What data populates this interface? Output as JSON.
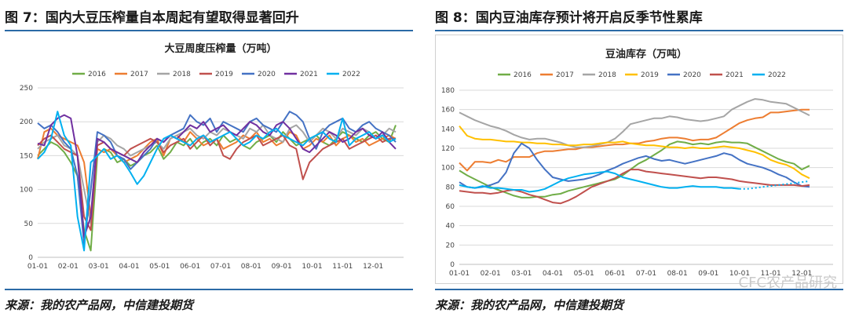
{
  "left": {
    "figure_title": "图 7：国内大豆压榨量自本周起有望取得显著回升",
    "source": "来源：我的农产品网，中信建投期货"
  },
  "right": {
    "figure_title": "图 8：国内豆油库存预计将开启反季节性累库",
    "source": "来源：我的农产品网，中信建投期货"
  },
  "watermark": "CFC农产品研究",
  "colors": {
    "rule": "#2b6aa6",
    "2016": "#70ad47",
    "2017": "#ed7d31",
    "2018": "#a5a5a5",
    "2019": "#ffc000",
    "2020": "#4472c4",
    "2021": "#c0504d",
    "2021_left": "#7030a0",
    "2022": "#00b0f0",
    "2019_left": "#c0504d"
  },
  "chart_data": [
    {
      "type": "line",
      "title": "大豆周度压榨量（万吨）",
      "x_ticks": [
        "01-01",
        "02-01",
        "03-01",
        "04-01",
        "05-01",
        "06-01",
        "07-01",
        "08-01",
        "09-01",
        "10-01",
        "11-01",
        "12-01"
      ],
      "ylim": [
        0,
        250
      ],
      "y_ticks": [
        0,
        50,
        100,
        150,
        200,
        250
      ],
      "legend": [
        "2016",
        "2017",
        "2018",
        "2019",
        "2020",
        "2021",
        "2022"
      ],
      "series": [
        {
          "name": "2016",
          "color": "#70ad47",
          "values": [
            150,
            160,
            170,
            165,
            155,
            140,
            120,
            40,
            10,
            150,
            160,
            155,
            140,
            145,
            135,
            140,
            150,
            155,
            165,
            145,
            155,
            170,
            165,
            175,
            160,
            170,
            175,
            165,
            180,
            170,
            175,
            165,
            160,
            170,
            175,
            180,
            170,
            185,
            175,
            165,
            170,
            175,
            180,
            170,
            165,
            175,
            185,
            180,
            175,
            170,
            180,
            185,
            175,
            170,
            195
          ]
        },
        {
          "name": "2017",
          "color": "#ed7d31",
          "values": [
            145,
            185,
            190,
            180,
            175,
            170,
            165,
            140,
            60,
            160,
            155,
            160,
            150,
            140,
            145,
            150,
            160,
            170,
            175,
            150,
            175,
            180,
            170,
            185,
            175,
            165,
            170,
            175,
            160,
            165,
            170,
            180,
            175,
            185,
            170,
            175,
            165,
            170,
            185,
            180,
            160,
            165,
            175,
            170,
            180,
            165,
            175,
            180,
            170,
            175,
            165,
            170,
            175,
            180,
            175
          ]
        },
        {
          "name": "2018",
          "color": "#a5a5a5",
          "values": [
            160,
            170,
            175,
            180,
            165,
            160,
            150,
            100,
            50,
            170,
            180,
            175,
            165,
            160,
            150,
            155,
            160,
            165,
            170,
            160,
            175,
            180,
            185,
            190,
            180,
            175,
            185,
            180,
            190,
            185,
            180,
            175,
            190,
            185,
            195,
            180,
            175,
            170,
            190,
            195,
            185,
            170,
            180,
            190,
            185,
            175,
            190,
            185,
            180,
            190,
            185,
            175,
            180,
            190,
            185
          ]
        },
        {
          "name": "2019",
          "color": "#c0504d",
          "values": [
            165,
            175,
            180,
            170,
            160,
            155,
            150,
            60,
            40,
            165,
            170,
            160,
            155,
            150,
            160,
            165,
            170,
            175,
            170,
            155,
            165,
            170,
            175,
            160,
            170,
            180,
            165,
            175,
            150,
            145,
            160,
            170,
            175,
            180,
            165,
            170,
            175,
            180,
            165,
            160,
            115,
            140,
            150,
            160,
            165,
            170,
            175,
            160,
            165,
            170,
            175,
            180,
            170,
            175,
            175
          ]
        },
        {
          "name": "2020",
          "color": "#4472c4",
          "values": [
            198,
            190,
            195,
            185,
            170,
            160,
            120,
            20,
            100,
            185,
            180,
            170,
            150,
            145,
            130,
            140,
            150,
            160,
            175,
            170,
            180,
            185,
            190,
            210,
            200,
            195,
            205,
            185,
            200,
            195,
            190,
            185,
            200,
            205,
            195,
            190,
            185,
            200,
            215,
            210,
            200,
            175,
            160,
            185,
            195,
            200,
            205,
            190,
            185,
            195,
            200,
            190,
            185,
            180,
            170
          ]
        },
        {
          "name": "2021",
          "color": "#7030a0",
          "values": [
            168,
            165,
            195,
            205,
            210,
            205,
            150,
            30,
            60,
            175,
            170,
            160,
            155,
            150,
            145,
            140,
            155,
            165,
            175,
            170,
            180,
            175,
            185,
            195,
            190,
            200,
            185,
            190,
            195,
            185,
            180,
            190,
            200,
            195,
            185,
            180,
            195,
            200,
            190,
            175,
            160,
            155,
            165,
            175,
            185,
            180,
            170,
            175,
            185,
            190,
            180,
            175,
            185,
            170,
            160
          ]
        },
        {
          "name": "2022",
          "color": "#00b0f0",
          "values": [
            145,
            155,
            175,
            215,
            180,
            165,
            60,
            10,
            140,
            150,
            160,
            145,
            150,
            140,
            125,
            108,
            120,
            140,
            160,
            175,
            180,
            175,
            170,
            165,
            175,
            180,
            170,
            175,
            180,
            185,
            175,
            165,
            170,
            180,
            175,
            185,
            190,
            180,
            175,
            170,
            165,
            175,
            180,
            185,
            175,
            170,
            205,
            165,
            175,
            180,
            185,
            175,
            180,
            170,
            175
          ]
        }
      ]
    },
    {
      "type": "line",
      "title": "豆油库存（万吨）",
      "x_ticks": [
        "01-01",
        "02-01",
        "03-01",
        "04-01",
        "05-01",
        "06-01",
        "07-01",
        "08-01",
        "09-01",
        "10-01",
        "11-01",
        "12-01"
      ],
      "ylim": [
        0,
        180
      ],
      "y_ticks": [
        0,
        20,
        40,
        60,
        80,
        100,
        120,
        140,
        160,
        180
      ],
      "legend": [
        "2016",
        "2017",
        "2018",
        "2019",
        "2020",
        "2021",
        "2022"
      ],
      "series": [
        {
          "name": "2016",
          "color": "#70ad47",
          "values": [
            97,
            92,
            88,
            84,
            80,
            77,
            74,
            71,
            69,
            69,
            70,
            70,
            72,
            73,
            76,
            78,
            80,
            82,
            84,
            86,
            88,
            92,
            98,
            104,
            108,
            113,
            118,
            124,
            127,
            126,
            124,
            125,
            124,
            126,
            127,
            126,
            126,
            125,
            121,
            117,
            113,
            109,
            106,
            104,
            98,
            102
          ]
        },
        {
          "name": "2017",
          "color": "#ed7d31",
          "values": [
            105,
            97,
            106,
            106,
            105,
            108,
            106,
            111,
            111,
            111,
            115,
            117,
            117,
            118,
            119,
            119,
            121,
            121,
            122,
            123,
            124,
            124,
            125,
            125,
            127,
            128,
            130,
            131,
            131,
            130,
            128,
            129,
            129,
            131,
            136,
            141,
            146,
            149,
            151,
            152,
            157,
            157,
            158,
            159,
            160,
            160
          ]
        },
        {
          "name": "2018",
          "color": "#a5a5a5",
          "values": [
            157,
            153,
            149,
            146,
            143,
            141,
            138,
            134,
            131,
            129,
            130,
            130,
            128,
            126,
            123,
            121,
            121,
            122,
            124,
            126,
            130,
            137,
            145,
            147,
            149,
            151,
            151,
            153,
            152,
            150,
            149,
            148,
            149,
            151,
            153,
            160,
            164,
            168,
            171,
            170,
            168,
            167,
            166,
            162,
            158,
            154
          ]
        },
        {
          "name": "2019",
          "color": "#ffc000",
          "values": [
            143,
            133,
            130,
            129,
            129,
            128,
            127,
            127,
            126,
            126,
            125,
            125,
            124,
            124,
            123,
            123,
            124,
            124,
            125,
            126,
            126,
            127,
            125,
            124,
            123,
            123,
            122,
            121,
            121,
            120,
            121,
            120,
            120,
            121,
            122,
            121,
            120,
            118,
            116,
            113,
            108,
            105,
            103,
            99,
            93,
            89
          ]
        },
        {
          "name": "2020",
          "color": "#4472c4",
          "values": [
            85,
            80,
            79,
            80,
            82,
            85,
            95,
            115,
            125,
            120,
            108,
            98,
            90,
            88,
            86,
            87,
            88,
            90,
            93,
            97,
            100,
            104,
            107,
            110,
            112,
            109,
            107,
            108,
            106,
            104,
            106,
            108,
            110,
            112,
            115,
            113,
            108,
            104,
            102,
            100,
            97,
            93,
            90,
            85,
            81,
            80
          ]
        },
        {
          "name": "2021",
          "color": "#c0504d",
          "values": [
            76,
            75,
            74,
            74,
            73,
            74,
            76,
            77,
            75,
            72,
            70,
            67,
            64,
            63,
            66,
            70,
            75,
            80,
            83,
            86,
            89,
            94,
            98,
            98,
            96,
            95,
            94,
            93,
            92,
            91,
            90,
            89,
            90,
            90,
            89,
            88,
            86,
            85,
            84,
            83,
            82,
            82,
            82,
            82,
            81,
            82
          ]
        },
        {
          "name": "2022",
          "color": "#00b0f0",
          "values": [
            82,
            80,
            79,
            81,
            79,
            79,
            78,
            77,
            77,
            75,
            76,
            78,
            82,
            86,
            89,
            91,
            93,
            94,
            95,
            96,
            94,
            90,
            88,
            86,
            84,
            82,
            80,
            79,
            79,
            80,
            81,
            80,
            80,
            80,
            79,
            79,
            78,
            null,
            null,
            null,
            null,
            null,
            null,
            null,
            null,
            null
          ],
          "forecast": [
            78,
            79,
            80,
            81,
            82,
            83,
            84,
            85,
            86
          ]
        }
      ]
    }
  ]
}
